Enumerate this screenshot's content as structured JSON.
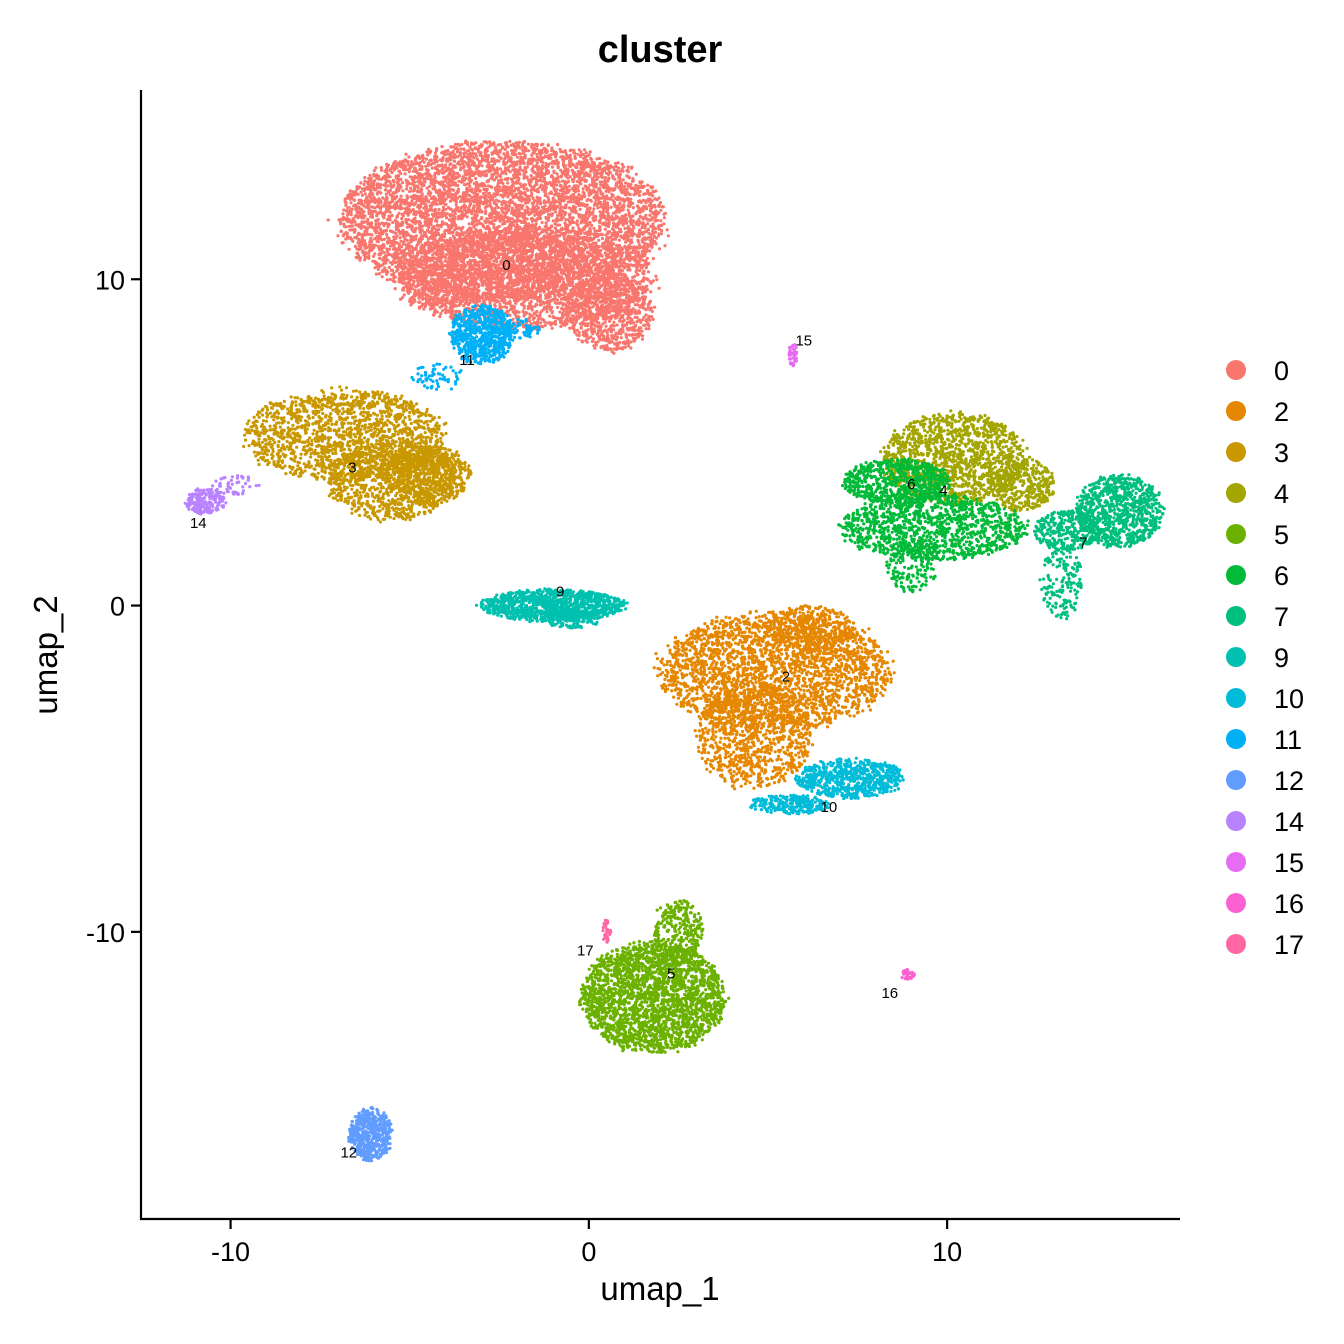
{
  "chart_data": {
    "type": "scatter",
    "title": "cluster",
    "xlabel": "umap_1",
    "ylabel": "umap_2",
    "xlim": [
      -12.5,
      16.5
    ],
    "ylim": [
      -18.8,
      15.8
    ],
    "x_ticks": [
      -10,
      0,
      10
    ],
    "y_ticks": [
      10,
      0,
      -10
    ],
    "x_tick_labels": [
      "-10",
      "0",
      "10"
    ],
    "y_tick_labels": [
      "10",
      "0",
      "-10"
    ],
    "grid": false,
    "legend_position": "right",
    "series": [
      {
        "name": "0",
        "color": "#F8766D",
        "label_at": [
          -2.3,
          10.4
        ],
        "label_text": "0",
        "regions": [
          [
            -2.4,
            11.8,
            4.5,
            2.4,
            6000
          ],
          [
            -1.8,
            10.0,
            3.6,
            1.5,
            2400
          ],
          [
            0.6,
            9.0,
            1.2,
            1.2,
            700
          ],
          [
            -4.0,
            9.5,
            1.0,
            0.4,
            120
          ]
        ]
      },
      {
        "name": "2",
        "color": "#E58700",
        "label_at": [
          5.5,
          -2.2
        ],
        "label_text": "2",
        "regions": [
          [
            5.2,
            -2.0,
            3.2,
            1.8,
            2600
          ],
          [
            4.6,
            -4.0,
            1.6,
            1.6,
            900
          ],
          [
            6.2,
            -0.7,
            1.2,
            0.7,
            300
          ]
        ]
      },
      {
        "name": "3",
        "color": "#C99800",
        "label_at": [
          -6.6,
          4.2
        ],
        "label_text": "3",
        "regions": [
          [
            -6.8,
            5.2,
            2.8,
            1.4,
            1600
          ],
          [
            -5.5,
            3.8,
            1.8,
            1.2,
            900
          ],
          [
            -4.5,
            4.0,
            1.2,
            0.9,
            600
          ]
        ]
      },
      {
        "name": "4",
        "color": "#A3A500",
        "label_at": [
          9.9,
          3.5
        ],
        "label_text": "4",
        "regions": [
          [
            10.2,
            4.5,
            2.0,
            1.4,
            1300
          ],
          [
            12.1,
            3.7,
            0.9,
            0.8,
            350
          ]
        ]
      },
      {
        "name": "5",
        "color": "#6BB100",
        "label_at": [
          2.3,
          -11.3
        ],
        "label_text": "5",
        "regions": [
          [
            1.8,
            -12.0,
            2.0,
            1.7,
            2400
          ],
          [
            2.5,
            -10.0,
            0.7,
            1.0,
            300
          ]
        ]
      },
      {
        "name": "6",
        "color": "#00BA38",
        "label_at": [
          9.0,
          3.7
        ],
        "label_text": "6",
        "regions": [
          [
            8.6,
            3.8,
            1.5,
            0.7,
            700
          ],
          [
            9.6,
            2.4,
            2.6,
            1.0,
            1200
          ],
          [
            9.0,
            1.2,
            0.7,
            0.8,
            160
          ]
        ]
      },
      {
        "name": "7",
        "color": "#00BF7D",
        "label_at": [
          13.8,
          1.9
        ],
        "label_text": "7",
        "regions": [
          [
            14.8,
            2.9,
            1.2,
            1.1,
            900
          ],
          [
            13.3,
            2.3,
            0.9,
            0.6,
            300
          ],
          [
            13.2,
            0.7,
            0.6,
            1.1,
            160
          ]
        ]
      },
      {
        "name": "9",
        "color": "#00C0AF",
        "label_at": [
          -0.8,
          0.4
        ],
        "label_text": "9",
        "regions": [
          [
            -1.0,
            0.0,
            2.0,
            0.5,
            1100
          ],
          [
            -0.5,
            -0.4,
            0.8,
            0.3,
            150
          ]
        ]
      },
      {
        "name": "10",
        "color": "#00BCD8",
        "label_at": [
          6.7,
          -6.2
        ],
        "label_text": "10",
        "regions": [
          [
            7.3,
            -5.3,
            1.5,
            0.6,
            700
          ],
          [
            5.6,
            -6.1,
            1.1,
            0.3,
            250
          ]
        ]
      },
      {
        "name": "11",
        "color": "#00B0F6",
        "label_at": [
          -3.4,
          7.5
        ],
        "label_text": "11",
        "regions": [
          [
            -3.0,
            8.3,
            0.9,
            0.9,
            700
          ],
          [
            -4.2,
            7.0,
            0.8,
            0.4,
            60
          ],
          [
            -1.9,
            8.5,
            0.6,
            0.3,
            60
          ]
        ]
      },
      {
        "name": "12",
        "color": "#619CFF",
        "label_at": [
          -6.7,
          -16.8
        ],
        "label_text": "12",
        "regions": [
          [
            -6.1,
            -16.2,
            0.6,
            0.8,
            500
          ]
        ]
      },
      {
        "name": "14",
        "color": "#B983FF",
        "label_at": [
          -10.9,
          2.5
        ],
        "label_text": "14",
        "regions": [
          [
            -10.7,
            3.2,
            0.55,
            0.4,
            200
          ],
          [
            -9.9,
            3.7,
            0.7,
            0.3,
            50
          ]
        ]
      },
      {
        "name": "15",
        "color": "#E76BF3",
        "label_at": [
          6.0,
          8.1
        ],
        "label_text": "15",
        "regions": [
          [
            5.7,
            7.7,
            0.12,
            0.35,
            40
          ]
        ]
      },
      {
        "name": "16",
        "color": "#FD61D1",
        "label_at": [
          8.4,
          -11.9
        ],
        "label_text": "16",
        "regions": [
          [
            8.9,
            -11.3,
            0.2,
            0.15,
            30
          ]
        ]
      },
      {
        "name": "17",
        "color": "#FF67A4",
        "label_at": [
          -0.1,
          -10.6
        ],
        "label_text": "17",
        "regions": [
          [
            0.5,
            -10.0,
            0.12,
            0.35,
            30
          ]
        ]
      }
    ]
  }
}
